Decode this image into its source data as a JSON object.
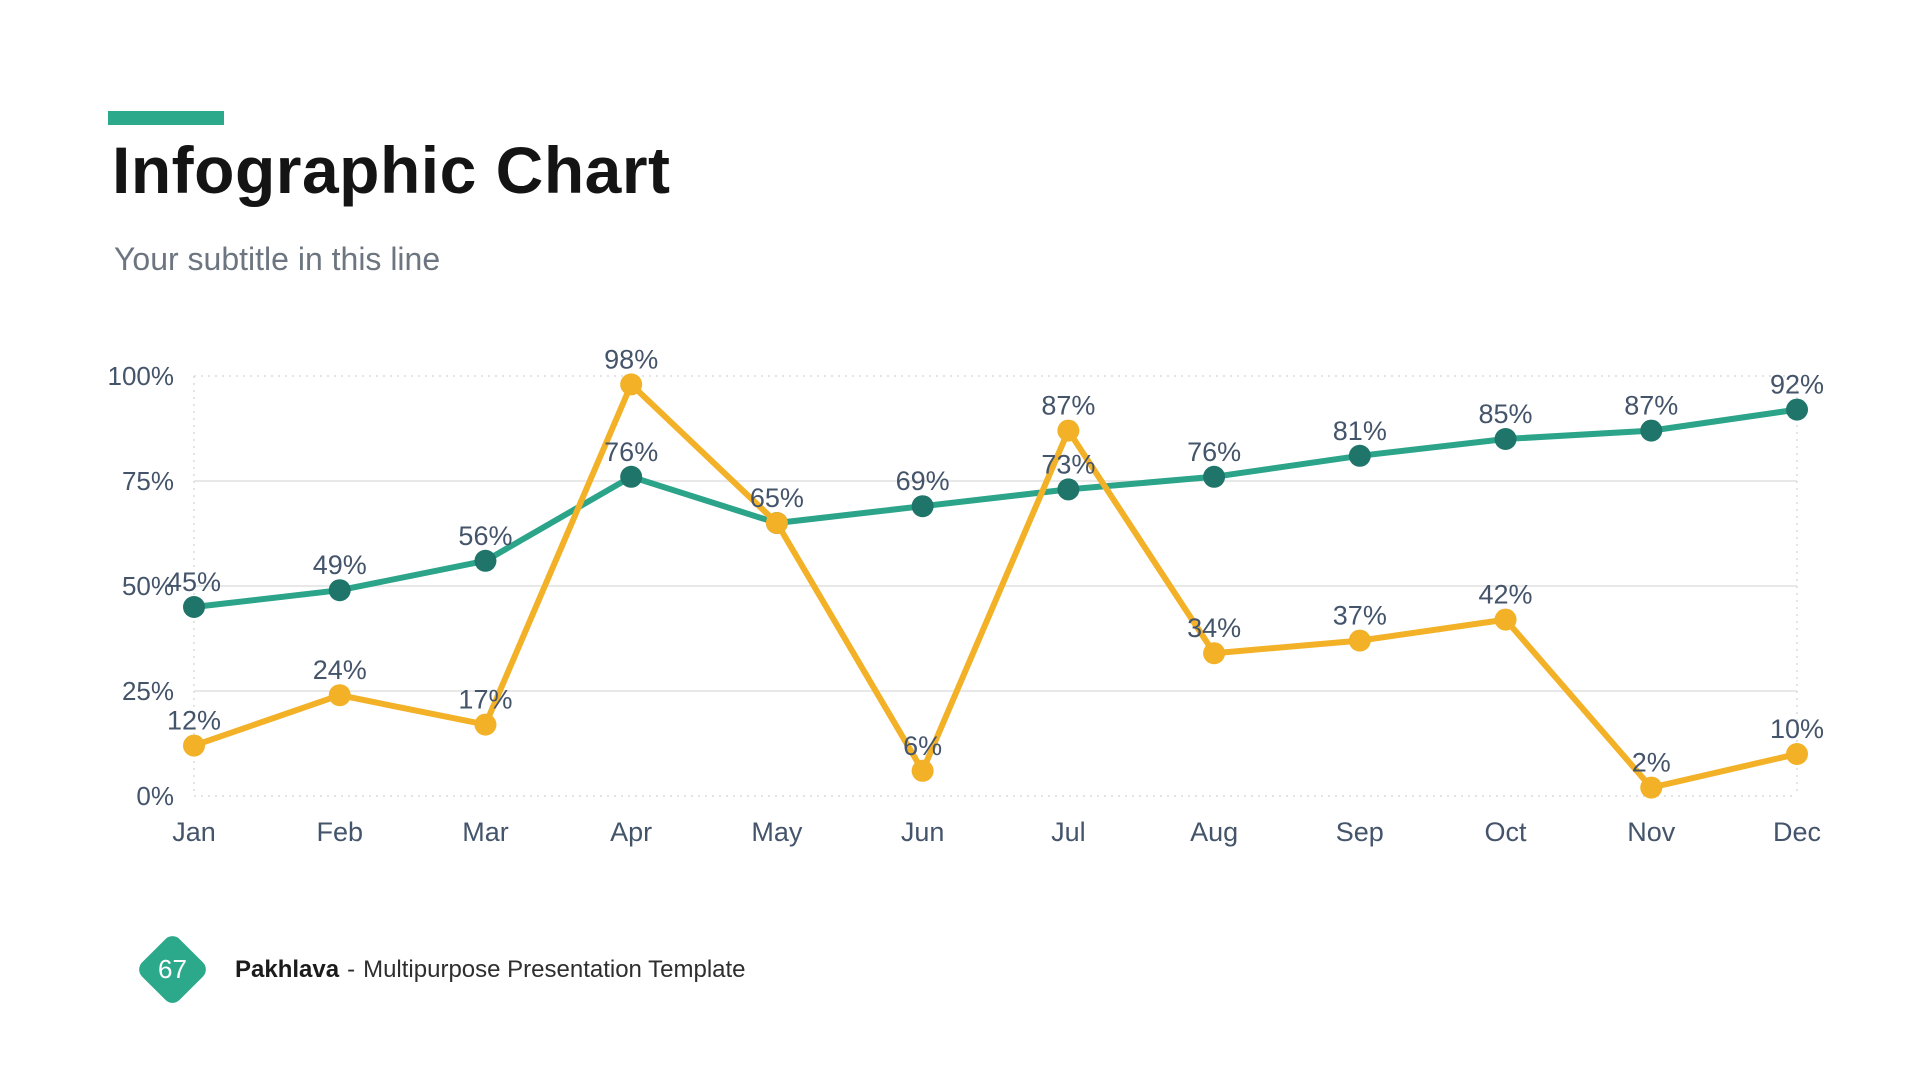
{
  "slide": {
    "title": "Infographic Chart",
    "subtitle": "Your subtitle in this line",
    "accent_color": "#2BA98A",
    "background_color": "#FFFFFF"
  },
  "chart_data": {
    "type": "line",
    "title": "",
    "categories": [
      "Jan",
      "Feb",
      "Mar",
      "Apr",
      "May",
      "Jun",
      "Jul",
      "Aug",
      "Sep",
      "Oct",
      "Nov",
      "Dec"
    ],
    "series": [
      {
        "id": "teal-series",
        "color": "#2BA48A",
        "point_color": "#1F7569",
        "values": [
          45,
          49,
          56,
          76,
          65,
          69,
          73,
          76,
          81,
          85,
          87,
          92
        ],
        "labels": [
          "45%",
          "49%",
          "56%",
          "76%",
          "",
          "69%",
          "73%",
          "76%",
          "81%",
          "85%",
          "87%",
          "92%"
        ]
      },
      {
        "id": "yellow-series",
        "color": "#F2B126",
        "point_color": "#F2B126",
        "values": [
          12,
          24,
          17,
          98,
          65,
          6,
          87,
          34,
          37,
          42,
          2,
          10
        ],
        "labels": [
          "12%",
          "24%",
          "17%",
          "98%",
          "65%",
          "6%",
          "87%",
          "34%",
          "37%",
          "42%",
          "2%",
          "10%"
        ]
      }
    ],
    "y_ticks": [
      {
        "label": "0%",
        "value": 0
      },
      {
        "label": "25%",
        "value": 25
      },
      {
        "label": "50%",
        "value": 50
      },
      {
        "label": "75%",
        "value": 75
      },
      {
        "label": "100%",
        "value": 100
      }
    ],
    "ylim": [
      0,
      100
    ],
    "grid": "horizontal",
    "legend": "none",
    "axis_label_color": "#44546A",
    "data_label_color": "#44546A",
    "grid_color": "#E8E8E8",
    "dashed_grid_color": "#DBDBDB"
  },
  "footer": {
    "page_number": "67",
    "badge_color": "#2BA98A",
    "brand": "Pakhlava",
    "separator": "-",
    "description": "Multipurpose Presentation Template"
  }
}
